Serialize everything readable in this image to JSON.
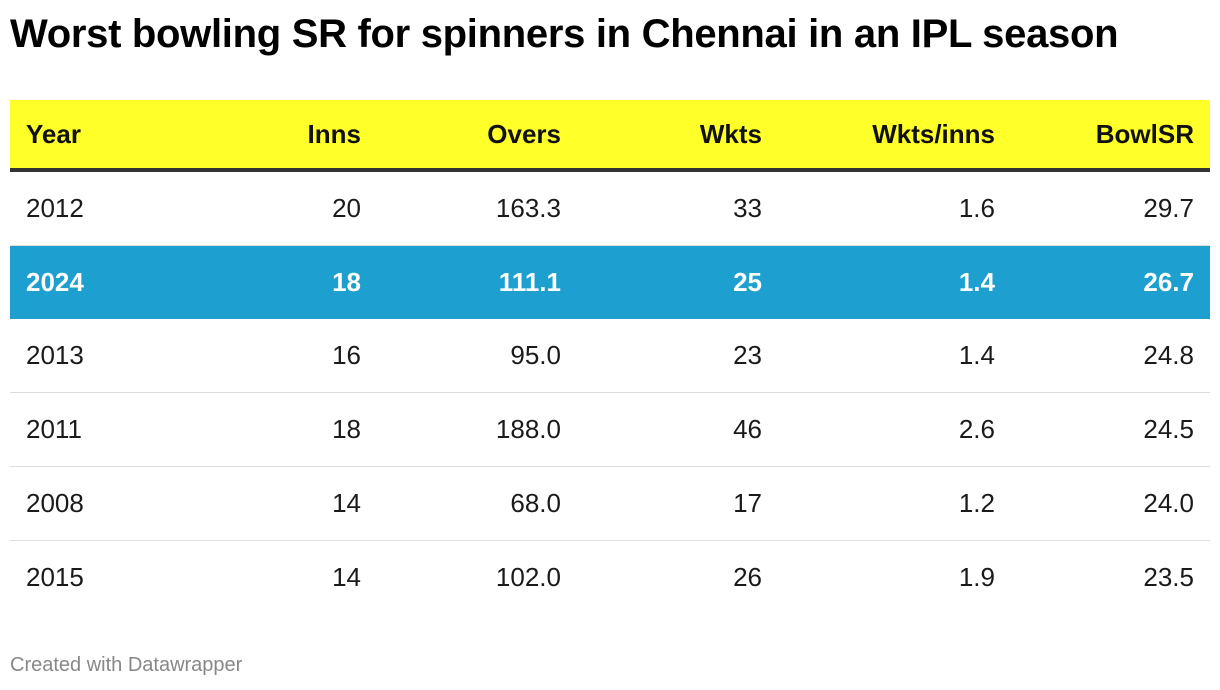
{
  "title": "Worst bowling SR for spinners in Chennai in an IPL season",
  "footer": "Created with Datawrapper",
  "colors": {
    "header_bg": "#ffff29",
    "highlight_bg": "#1da0cf",
    "highlight_text": "#ffffff"
  },
  "chart_data": {
    "type": "table",
    "title": "Worst bowling SR for spinners in Chennai in an IPL season",
    "columns": [
      "Year",
      "Inns",
      "Overs",
      "Wkts",
      "Wkts/inns",
      "BowlSR"
    ],
    "rows": [
      {
        "cells": [
          "2012",
          "20",
          "163.3",
          "33",
          "1.6",
          "29.7"
        ],
        "highlighted": false
      },
      {
        "cells": [
          "2024",
          "18",
          "111.1",
          "25",
          "1.4",
          "26.7"
        ],
        "highlighted": true
      },
      {
        "cells": [
          "2013",
          "16",
          "95.0",
          "23",
          "1.4",
          "24.8"
        ],
        "highlighted": false
      },
      {
        "cells": [
          "2011",
          "18",
          "188.0",
          "46",
          "2.6",
          "24.5"
        ],
        "highlighted": false
      },
      {
        "cells": [
          "2008",
          "14",
          "68.0",
          "17",
          "1.2",
          "24.0"
        ],
        "highlighted": false
      },
      {
        "cells": [
          "2015",
          "14",
          "102.0",
          "26",
          "1.9",
          "23.5"
        ],
        "highlighted": false
      }
    ]
  }
}
